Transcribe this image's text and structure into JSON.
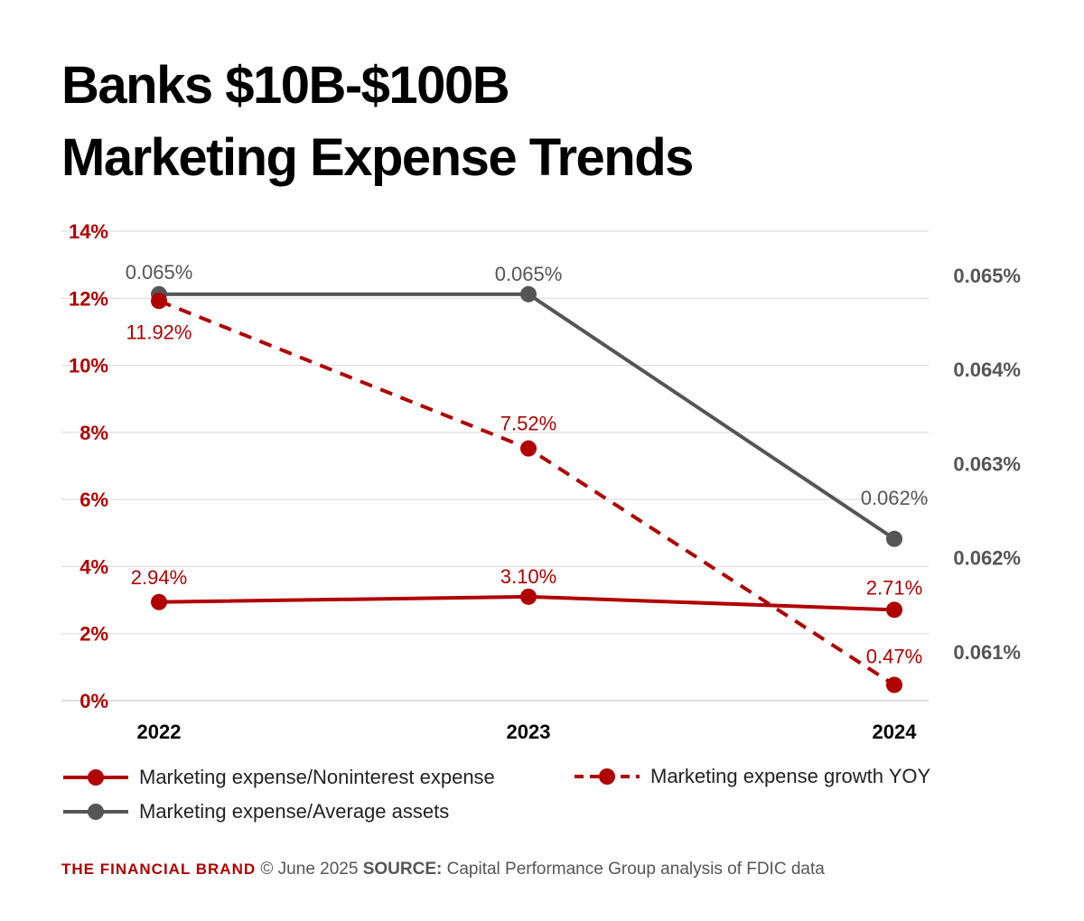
{
  "title_line1": "Banks $10B-$100B",
  "title_line2": "Marketing Expense Trends",
  "chart_data": {
    "type": "line",
    "categories": [
      "2022",
      "2023",
      "2024"
    ],
    "y_left": {
      "ylim": [
        0,
        14
      ],
      "ticks": [
        "0%",
        "2%",
        "4%",
        "6%",
        "8%",
        "10%",
        "12%",
        "14%"
      ],
      "tick_values": [
        0,
        2,
        4,
        6,
        8,
        10,
        12,
        14
      ],
      "color": "#b00000"
    },
    "y_right": {
      "ylim": [
        0.06048,
        0.06547
      ],
      "ticks": [
        "0.061%",
        "0.062%",
        "0.063%",
        "0.064%",
        "0.065%"
      ],
      "tick_values": [
        0.061,
        0.062,
        0.063,
        0.064,
        0.065
      ],
      "color": "#555555"
    },
    "grid": true,
    "legend_position": "bottom",
    "series": [
      {
        "name": "Marketing expense/Noninterest expense",
        "axis": "left",
        "style": "solid",
        "color": "#b00000",
        "values": [
          2.94,
          3.1,
          2.71
        ],
        "labels": [
          "2.94%",
          "3.10%",
          "2.71%"
        ]
      },
      {
        "name": "Marketing expense growth YOY",
        "axis": "left",
        "style": "dashed",
        "color": "#b00000",
        "values": [
          11.92,
          7.52,
          0.47
        ],
        "labels": [
          "11.92%",
          "7.52%",
          "0.47%"
        ]
      },
      {
        "name": "Marketing expense/Average assets",
        "axis": "right",
        "style": "solid",
        "color": "#555555",
        "values": [
          0.0648,
          0.0648,
          0.0622
        ],
        "labels": [
          "0.065%",
          "0.065%",
          "0.062%"
        ]
      }
    ]
  },
  "footer": {
    "brand": "THE FINANCIAL BRAND",
    "date": "© June 2025",
    "source_label": "SOURCE:",
    "source_text": "Capital Performance Group analysis of FDIC data"
  }
}
